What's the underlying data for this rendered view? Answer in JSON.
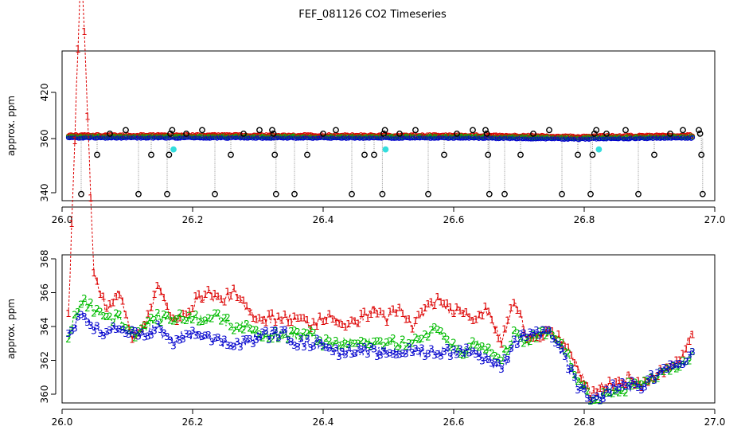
{
  "title": "FEF_081126  CO2 Timeseries",
  "colors": {
    "raw_points": "#000000",
    "series1": "#dd0000",
    "series2": "#00bb00",
    "series3": "#0000cc",
    "highlight": "#33dddd",
    "drop_lines": "#888888"
  },
  "chart_data": [
    {
      "type": "scatter",
      "title": "",
      "xlabel": "",
      "ylabel": "approx. ppm",
      "xlim": [
        26.0,
        27.0
      ],
      "ylim": [
        339,
        372
      ],
      "xticks": [
        26.0,
        26.2,
        26.4,
        26.6,
        26.8,
        27.0
      ],
      "xtick_labels": [
        "26.0",
        "26.2",
        "26.4",
        "26.6",
        "26.8",
        "27.0"
      ],
      "yticks": [
        340,
        360,
        420
      ],
      "ytick_labels": [
        "340",
        "360",
        "420"
      ],
      "grid": false,
      "legend": "none",
      "segments": [
        {
          "x_start": 26.0,
          "x_end": 26.33,
          "y_start": 361.2,
          "y_end": 361.0,
          "color": "series3"
        },
        {
          "x_start": 26.33,
          "x_end": 26.66,
          "y_start": 361.0,
          "y_end": 360.9,
          "color": "series3"
        },
        {
          "x_start": 26.66,
          "x_end": 26.8,
          "y_start": 360.6,
          "y_end": 359.8,
          "color": "series3"
        },
        {
          "x_start": 26.8,
          "x_end": 26.98,
          "y_start": 359.8,
          "y_end": 361.0,
          "color": "series3"
        }
      ],
      "outliers": [
        {
          "x": 26.02,
          "y": 339.5
        },
        {
          "x": 26.045,
          "y": 354.0
        },
        {
          "x": 26.065,
          "y": 366.3
        },
        {
          "x": 26.09,
          "y": 371.0
        },
        {
          "x": 26.11,
          "y": 339.5
        },
        {
          "x": 26.13,
          "y": 354.0
        },
        {
          "x": 26.155,
          "y": 339.5
        },
        {
          "x": 26.158,
          "y": 354.0
        },
        {
          "x": 26.16,
          "y": 366.3
        },
        {
          "x": 26.163,
          "y": 371.0
        },
        {
          "x": 26.185,
          "y": 366.3
        },
        {
          "x": 26.21,
          "y": 371.0
        },
        {
          "x": 26.23,
          "y": 339.5
        },
        {
          "x": 26.255,
          "y": 354.0
        },
        {
          "x": 26.275,
          "y": 366.3
        },
        {
          "x": 26.3,
          "y": 371.0
        },
        {
          "x": 26.32,
          "y": 371.0
        },
        {
          "x": 26.322,
          "y": 366.3
        },
        {
          "x": 26.324,
          "y": 354.0
        },
        {
          "x": 26.326,
          "y": 339.5
        },
        {
          "x": 26.355,
          "y": 339.5
        },
        {
          "x": 26.375,
          "y": 354.0
        },
        {
          "x": 26.4,
          "y": 366.3
        },
        {
          "x": 26.42,
          "y": 371.0
        },
        {
          "x": 26.445,
          "y": 339.5
        },
        {
          "x": 26.465,
          "y": 354.0
        },
        {
          "x": 26.48,
          "y": 354.0
        },
        {
          "x": 26.493,
          "y": 339.5
        },
        {
          "x": 26.495,
          "y": 366.3
        },
        {
          "x": 26.497,
          "y": 371.0
        },
        {
          "x": 26.52,
          "y": 366.3
        },
        {
          "x": 26.545,
          "y": 371.0
        },
        {
          "x": 26.565,
          "y": 339.5
        },
        {
          "x": 26.59,
          "y": 354.0
        },
        {
          "x": 26.61,
          "y": 366.3
        },
        {
          "x": 26.635,
          "y": 371.0
        },
        {
          "x": 26.655,
          "y": 371.0
        },
        {
          "x": 26.657,
          "y": 366.3
        },
        {
          "x": 26.659,
          "y": 354.0
        },
        {
          "x": 26.661,
          "y": 339.5
        },
        {
          "x": 26.685,
          "y": 339.5
        },
        {
          "x": 26.71,
          "y": 354.0
        },
        {
          "x": 26.73,
          "y": 366.3
        },
        {
          "x": 26.755,
          "y": 371.0
        },
        {
          "x": 26.775,
          "y": 339.5
        },
        {
          "x": 26.8,
          "y": 354.0
        },
        {
          "x": 26.82,
          "y": 339.5
        },
        {
          "x": 26.823,
          "y": 354.0
        },
        {
          "x": 26.826,
          "y": 366.3
        },
        {
          "x": 26.829,
          "y": 371.0
        },
        {
          "x": 26.845,
          "y": 366.3
        },
        {
          "x": 26.875,
          "y": 371.0
        },
        {
          "x": 26.895,
          "y": 339.5
        },
        {
          "x": 26.92,
          "y": 354.0
        },
        {
          "x": 26.945,
          "y": 366.3
        },
        {
          "x": 26.965,
          "y": 371.0
        },
        {
          "x": 26.99,
          "y": 371.0
        },
        {
          "x": 26.992,
          "y": 366.3
        },
        {
          "x": 26.994,
          "y": 354.0
        },
        {
          "x": 26.996,
          "y": 339.5
        }
      ],
      "highlight_points": [
        {
          "x": 26.165,
          "y": 356.0
        },
        {
          "x": 26.498,
          "y": 356.0
        },
        {
          "x": 26.833,
          "y": 356.0
        }
      ]
    },
    {
      "type": "line",
      "title": "",
      "xlabel": "",
      "ylabel": "approx. ppm",
      "xlim": [
        26.0,
        27.0
      ],
      "ylim": [
        359.2,
        388.2
      ],
      "xticks": [
        26.0,
        26.2,
        26.4,
        26.6,
        26.8,
        27.0
      ],
      "xtick_labels": [
        "26.0",
        "26.2",
        "26.4",
        "26.6",
        "26.8",
        "27.0"
      ],
      "yticks": [
        360,
        362,
        364,
        366,
        368
      ],
      "ytick_labels": [
        "360",
        "362",
        "364",
        "366",
        "368"
      ],
      "grid": false,
      "legend": "none",
      "x": [
        26.0,
        26.02,
        26.04,
        26.06,
        26.08,
        26.1,
        26.12,
        26.14,
        26.16,
        26.18,
        26.2,
        26.22,
        26.24,
        26.26,
        26.28,
        26.3,
        26.32,
        26.34,
        26.36,
        26.38,
        26.4,
        26.42,
        26.44,
        26.46,
        26.48,
        26.5,
        26.52,
        26.54,
        26.56,
        26.58,
        26.6,
        26.62,
        26.64,
        26.66,
        26.68,
        26.7,
        26.72,
        26.74,
        26.76,
        26.78,
        26.8,
        26.82,
        26.84,
        26.86,
        26.88,
        26.9,
        26.92,
        26.94,
        26.96,
        26.98
      ],
      "series": [
        {
          "name": "1",
          "color": "series1",
          "values": [
            364.5,
            386.0,
            367.0,
            365.0,
            366.0,
            363.5,
            364.0,
            366.5,
            364.5,
            364.5,
            365.5,
            366.0,
            365.5,
            366.0,
            365.0,
            364.5,
            364.5,
            364.5,
            364.5,
            364.0,
            364.5,
            364.5,
            364.0,
            364.5,
            365.0,
            364.5,
            365.0,
            364.0,
            365.0,
            365.5,
            365.0,
            365.0,
            364.5,
            365.0,
            363.0,
            365.5,
            363.5,
            363.5,
            363.5,
            363.0,
            361.5,
            360.0,
            360.5,
            360.5,
            361.0,
            360.5,
            361.0,
            361.5,
            362.0,
            363.5
          ]
        },
        {
          "name": "2",
          "color": "series2",
          "values": [
            363.5,
            365.5,
            365.0,
            364.5,
            364.5,
            363.5,
            364.0,
            364.5,
            364.5,
            364.5,
            364.5,
            364.5,
            364.5,
            364.0,
            364.0,
            363.5,
            363.5,
            363.5,
            363.5,
            363.5,
            363.0,
            363.0,
            363.0,
            363.0,
            363.0,
            363.0,
            363.0,
            363.0,
            363.5,
            364.0,
            363.0,
            362.5,
            363.0,
            362.5,
            362.0,
            363.5,
            363.0,
            363.5,
            363.5,
            362.5,
            361.0,
            359.5,
            360.0,
            360.0,
            360.5,
            360.5,
            361.0,
            361.5,
            361.5,
            362.5
          ]
        },
        {
          "name": "3",
          "color": "series3",
          "values": [
            363.5,
            364.5,
            364.0,
            363.5,
            364.0,
            363.5,
            363.5,
            364.0,
            363.0,
            363.5,
            363.5,
            363.5,
            363.0,
            363.0,
            363.0,
            363.5,
            363.5,
            363.5,
            363.0,
            363.0,
            363.0,
            362.5,
            362.5,
            362.5,
            362.5,
            362.5,
            362.5,
            362.5,
            362.5,
            362.5,
            362.5,
            362.5,
            362.5,
            362.0,
            361.5,
            363.0,
            363.5,
            363.5,
            363.5,
            362.0,
            360.5,
            359.5,
            360.0,
            360.5,
            360.5,
            360.5,
            361.0,
            361.5,
            361.5,
            362.5
          ]
        }
      ]
    }
  ]
}
